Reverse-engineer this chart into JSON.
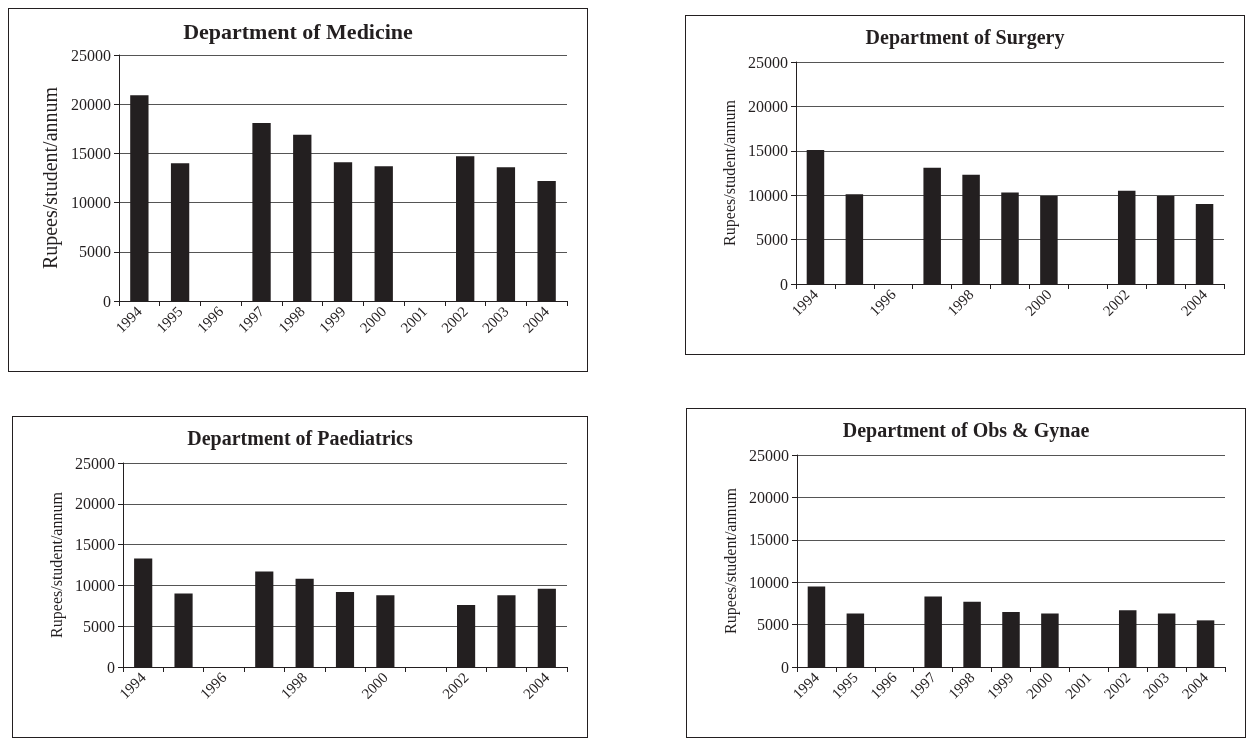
{
  "chart_data": [
    {
      "type": "bar",
      "title": "Department of Medicine",
      "ylabel": "Rupees/student/annum",
      "categories": [
        "1994",
        "1995",
        "1996",
        "1997",
        "1998",
        "1999",
        "2000",
        "2001",
        "2002",
        "2003",
        "2004"
      ],
      "values": [
        20900,
        14000,
        null,
        18100,
        16900,
        14100,
        13700,
        null,
        14700,
        13600,
        12200
      ],
      "color": "#231f20",
      "ylim": [
        0,
        25000
      ],
      "yticks": [
        0,
        5000,
        10000,
        15000,
        20000,
        25000
      ],
      "grid": "y"
    },
    {
      "type": "bar",
      "title": "Department of Surgery",
      "ylabel": "Rupees/student/annum",
      "categories": [
        "1994",
        null,
        "1996",
        null,
        "1998",
        null,
        "2000",
        null,
        "2002",
        null,
        "2004"
      ],
      "values": [
        15100,
        10100,
        null,
        13100,
        12300,
        10300,
        9900,
        null,
        10500,
        9900,
        9000
      ],
      "color": "#231f20",
      "ylim": [
        0,
        25000
      ],
      "yticks": [
        0,
        5000,
        10000,
        15000,
        20000,
        25000
      ],
      "grid": "y"
    },
    {
      "type": "bar",
      "title": "Department of Paediatrics",
      "ylabel": "Rupees/student/annum",
      "categories": [
        "1994",
        null,
        "1996",
        null,
        "1998",
        null,
        "2000",
        null,
        "2002",
        null,
        "2004"
      ],
      "values": [
        13300,
        9000,
        null,
        11700,
        10800,
        9200,
        8800,
        null,
        7600,
        8800,
        9600
      ],
      "color": "#231f20",
      "ylim": [
        0,
        25000
      ],
      "yticks": [
        0,
        5000,
        10000,
        15000,
        20000,
        25000
      ],
      "grid": "y"
    },
    {
      "type": "bar",
      "title": "Department of Obs & Gynae",
      "ylabel": "Rupees/student/annum",
      "categories": [
        "1994",
        "1995",
        "1996",
        "1997",
        "1998",
        "1999",
        "2000",
        "2001",
        "2002",
        "2003",
        "2004"
      ],
      "values": [
        9500,
        6300,
        null,
        8300,
        7700,
        6500,
        6300,
        null,
        6700,
        6300,
        5500
      ],
      "color": "#231f20",
      "ylim": [
        0,
        25000
      ],
      "yticks": [
        0,
        5000,
        10000,
        15000,
        20000,
        25000
      ],
      "grid": "y"
    }
  ]
}
